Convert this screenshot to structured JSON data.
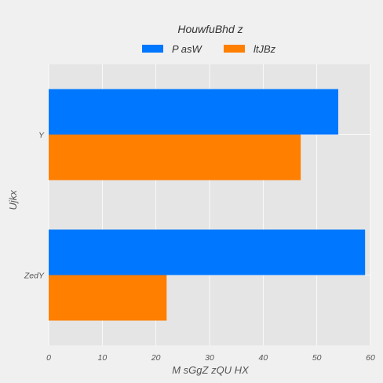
{
  "chart_data": {
    "type": "bar",
    "orientation": "horizontal",
    "title": "HouwfuBhd z",
    "xlabel": "M sGgZ zQU HX",
    "ylabel": "Ujkx",
    "categories": [
      "Y",
      "ZedY"
    ],
    "series": [
      {
        "name": "P asW",
        "values": [
          54,
          59
        ],
        "color": "#0077ff"
      },
      {
        "name": "ltJBz",
        "values": [
          47,
          22
        ],
        "color": "#ff7f00"
      }
    ],
    "xlim": [
      0,
      60
    ],
    "xticks": [
      0,
      10,
      20,
      30,
      40,
      50,
      60
    ],
    "grid": true,
    "legend_position": "top-center",
    "background": "#e5e5e5",
    "figure_background": "#f0f0f0"
  }
}
